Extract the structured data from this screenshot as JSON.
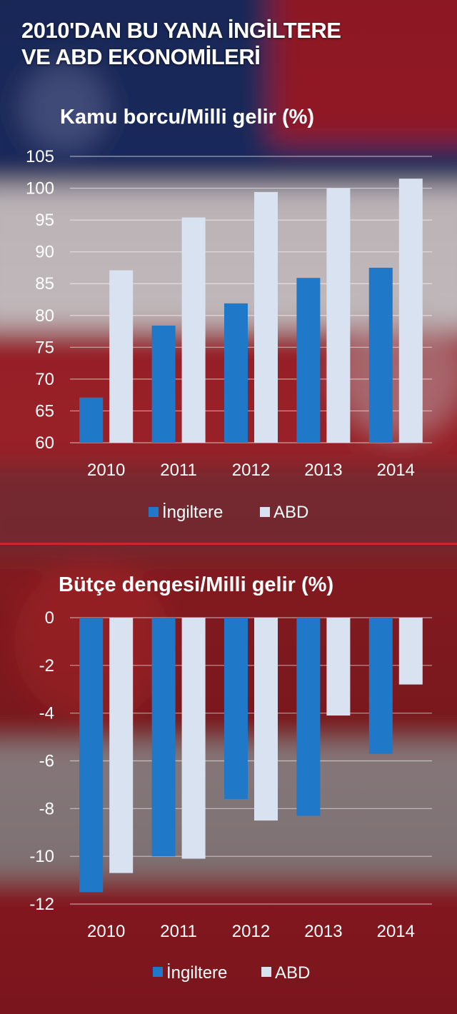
{
  "page": {
    "title_lines": [
      "2010'DAN BU YANA İNGİLTERE",
      "VE ABD EKONOMİLERİ"
    ]
  },
  "colors": {
    "uk": "#1f78c8",
    "usa": "#d9e2f1",
    "grid": "#ffffff",
    "divider": "#c9272e",
    "text": "#ffffff"
  },
  "chart_data": [
    {
      "type": "bar",
      "title": "Kamu borcu/Milli gelir (%)",
      "categories": [
        "2010",
        "2011",
        "2012",
        "2013",
        "2014"
      ],
      "series": [
        {
          "name": "İngiltere",
          "values": [
            67.1,
            78.4,
            81.9,
            85.9,
            87.5
          ]
        },
        {
          "name": "ABD",
          "values": [
            87.1,
            95.4,
            99.4,
            100.0,
            101.5
          ]
        }
      ],
      "ylim": [
        60,
        105
      ],
      "yticks": [
        60,
        65,
        70,
        75,
        80,
        85,
        90,
        95,
        100,
        105
      ],
      "grid": true,
      "legend": "bottom"
    },
    {
      "type": "bar",
      "title": "Bütçe dengesi/Milli gelir (%)",
      "categories": [
        "2010",
        "2011",
        "2012",
        "2013",
        "2014"
      ],
      "series": [
        {
          "name": "İngiltere",
          "values": [
            -11.5,
            -10.0,
            -7.6,
            -8.3,
            -5.7
          ]
        },
        {
          "name": "ABD",
          "values": [
            -10.7,
            -10.1,
            -8.5,
            -4.1,
            -2.8
          ]
        }
      ],
      "ylim": [
        -12,
        0
      ],
      "yticks": [
        0,
        -2,
        -4,
        -6,
        -8,
        -10,
        -12
      ],
      "grid": true,
      "legend": "bottom"
    }
  ]
}
